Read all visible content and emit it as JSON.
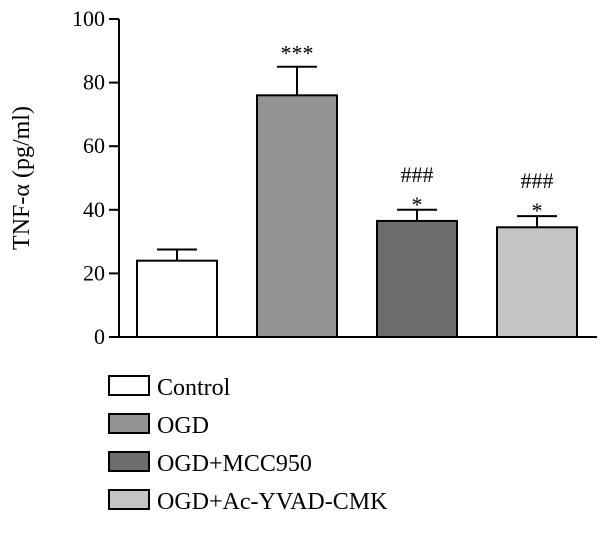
{
  "chart_data": {
    "type": "bar",
    "ylabel": "TNF-α (pg/ml)",
    "ylim": [
      0,
      100
    ],
    "yticks": [
      "0",
      "20",
      "40",
      "60",
      "80",
      "100"
    ],
    "categories": [
      "Control",
      "OGD",
      "OGD+MCC950",
      "OGD+Ac-YVAD-CMK"
    ],
    "values": [
      24,
      76,
      36.5,
      34.5
    ],
    "errors": [
      3.5,
      9,
      3.5,
      3.5
    ],
    "annotations": [
      [],
      [
        "***"
      ],
      [
        "###",
        "*"
      ],
      [
        "###",
        "*"
      ]
    ],
    "colors": [
      "#ffffff",
      "#939393",
      "#6b6d6f",
      "#c2c4c6"
    ],
    "grid": false,
    "legend_position": "bottom"
  }
}
